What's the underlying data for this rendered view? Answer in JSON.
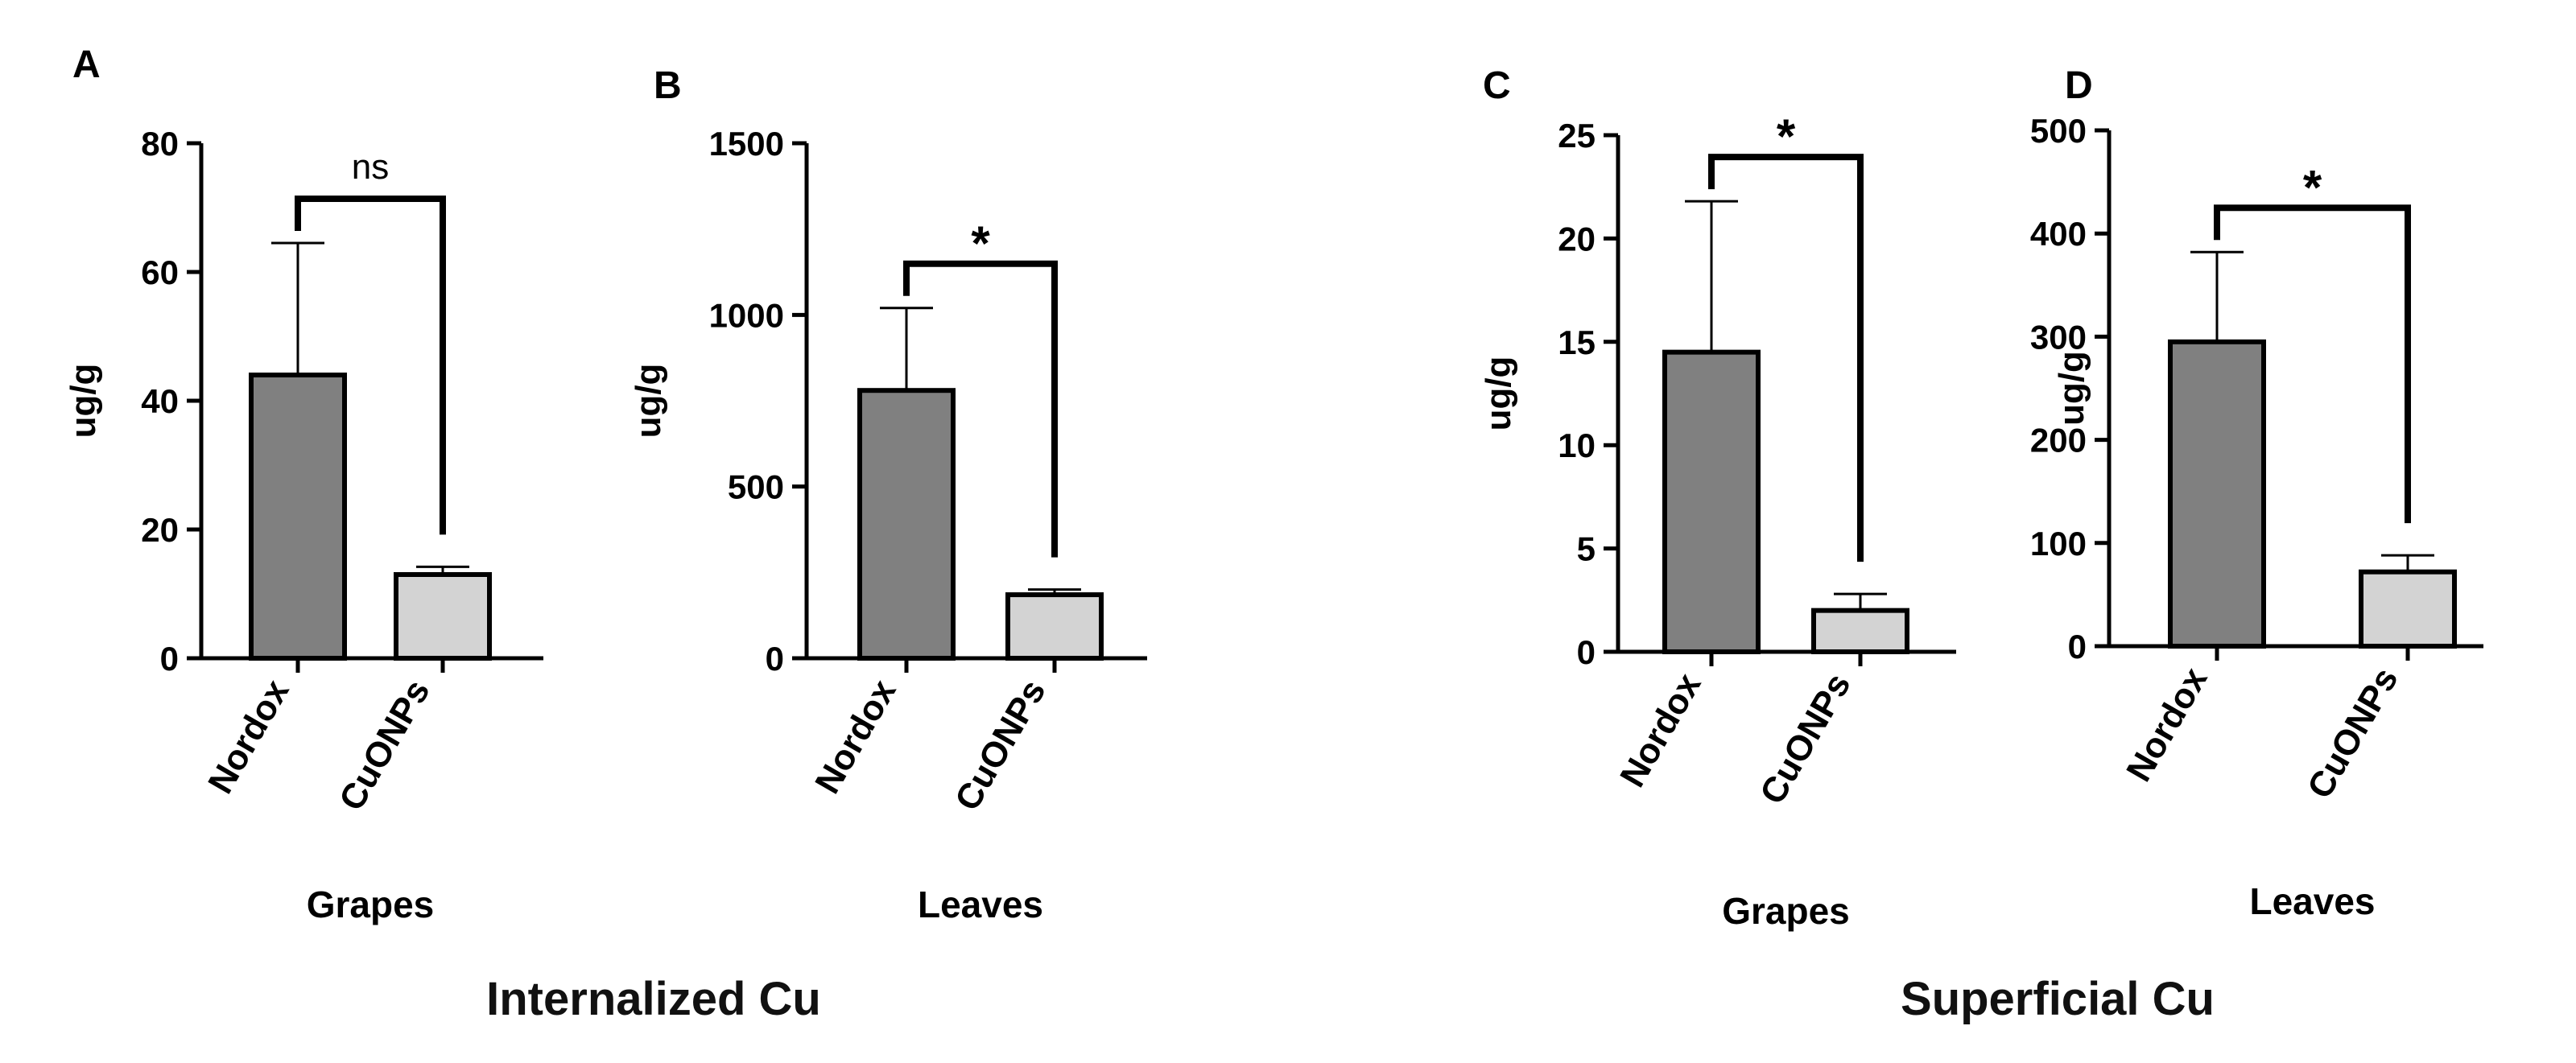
{
  "group_titles": [
    "Internalized Cu",
    "Superficial Cu"
  ],
  "colors": {
    "nordox": "#808080",
    "cuonps": "#d3d3d3",
    "stroke": "#000000"
  },
  "chart_data": [
    {
      "type": "bar",
      "panel": "A",
      "title": "",
      "xlabel": "Grapes",
      "ylabel": "ug/g",
      "categories": [
        "Nordox",
        "CuONPs"
      ],
      "values": [
        44,
        13
      ],
      "error_upper": [
        64.5,
        14.2
      ],
      "ylim": [
        0,
        80
      ],
      "yticks": [
        "0",
        "20",
        "40",
        "60",
        "80"
      ],
      "significance": "ns",
      "legend": "none",
      "grid": false
    },
    {
      "type": "bar",
      "panel": "B",
      "title": "",
      "xlabel": "Leaves",
      "ylabel": "ug/g",
      "categories": [
        "Nordox",
        "CuONPs"
      ],
      "values": [
        780,
        185
      ],
      "error_upper": [
        1020,
        200
      ],
      "ylim": [
        0,
        1500
      ],
      "yticks": [
        "0",
        "500",
        "1000",
        "1500"
      ],
      "significance": "*",
      "legend": "none",
      "grid": false
    },
    {
      "type": "bar",
      "panel": "C",
      "title": "",
      "xlabel": "Grapes",
      "ylabel": "ug/g",
      "categories": [
        "Nordox",
        "CuONPs"
      ],
      "values": [
        14.5,
        2
      ],
      "error_upper": [
        21.8,
        2.8
      ],
      "ylim": [
        0,
        25
      ],
      "yticks": [
        "0",
        "5",
        "10",
        "15",
        "20",
        "25"
      ],
      "significance": "*",
      "legend": "none",
      "grid": false
    },
    {
      "type": "bar",
      "panel": "D",
      "title": "",
      "xlabel": "Leaves",
      "ylabel": "ug/g",
      "categories": [
        "Nordox",
        "CuONPs"
      ],
      "values": [
        295,
        72
      ],
      "error_upper": [
        382,
        88
      ],
      "ylim": [
        0,
        500
      ],
      "yticks": [
        "0",
        "100",
        "200",
        "300",
        "400",
        "500"
      ],
      "significance": "*",
      "legend": "none",
      "grid": false
    }
  ]
}
